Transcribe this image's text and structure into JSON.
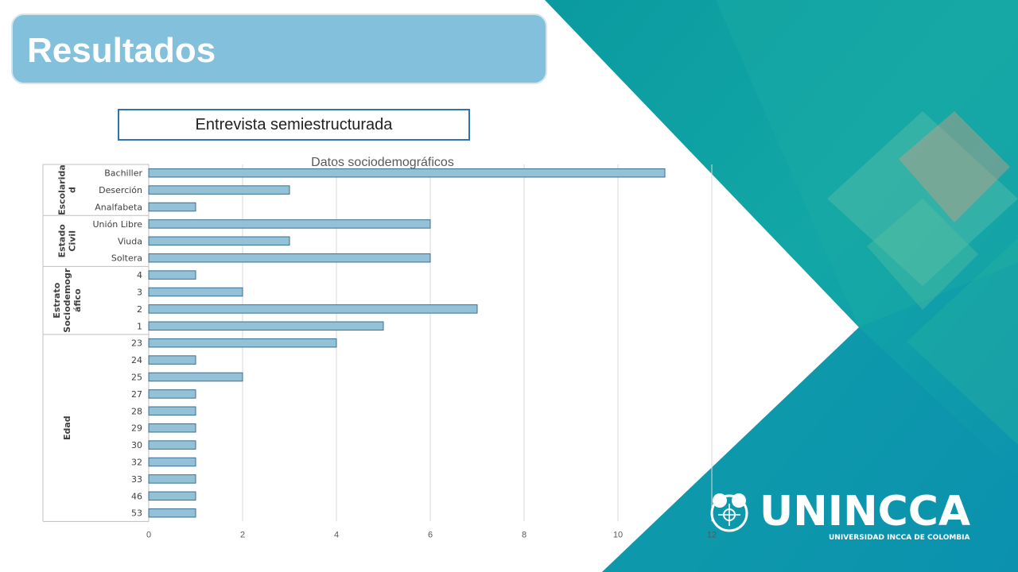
{
  "slide": {
    "title": "Resultados",
    "subtitle": "Entrevista semiestructurada"
  },
  "logo": {
    "name": "UNINCCA",
    "tagline": "UNIVERSIDAD INCCA DE COLOMBIA"
  },
  "colors": {
    "title_box": "#82c0db",
    "subtitle_border": "#2e74b5",
    "bar_fill": "#93c1d8",
    "bar_stroke": "#3b6f8f",
    "teal_dark": "#0a9aa0",
    "teal_light": "#2fb59a"
  },
  "chart_data": {
    "type": "bar",
    "orientation": "horizontal",
    "title": "Datos sociodemográficos",
    "xlim": [
      0,
      12
    ],
    "x_ticks": [
      0,
      2,
      4,
      6,
      8,
      10,
      12
    ],
    "grid": true,
    "groups": [
      {
        "name": "Escolaridad",
        "label_lines": [
          "Escolarida",
          "d"
        ],
        "categories": [
          "Bachiller",
          "Deserción",
          "Analfabeta"
        ],
        "values": [
          11,
          3,
          1
        ]
      },
      {
        "name": "Estado Civil",
        "label_lines": [
          "Estado",
          "Civil"
        ],
        "categories": [
          "Unión Libre",
          "Viuda",
          "Soltera"
        ],
        "values": [
          6,
          3,
          6
        ]
      },
      {
        "name": "Estrato Sociodemográfico",
        "label_lines": [
          "Estrato",
          "Sociodemogr",
          "áfico"
        ],
        "categories": [
          "4",
          "3",
          "2",
          "1"
        ],
        "values": [
          1,
          2,
          7,
          5
        ]
      },
      {
        "name": "Edad",
        "label_lines": [
          "Edad"
        ],
        "categories": [
          "23",
          "24",
          "25",
          "27",
          "28",
          "29",
          "30",
          "32",
          "33",
          "46",
          "53"
        ],
        "values": [
          4,
          1,
          2,
          1,
          1,
          1,
          1,
          1,
          1,
          1,
          1
        ]
      }
    ]
  }
}
